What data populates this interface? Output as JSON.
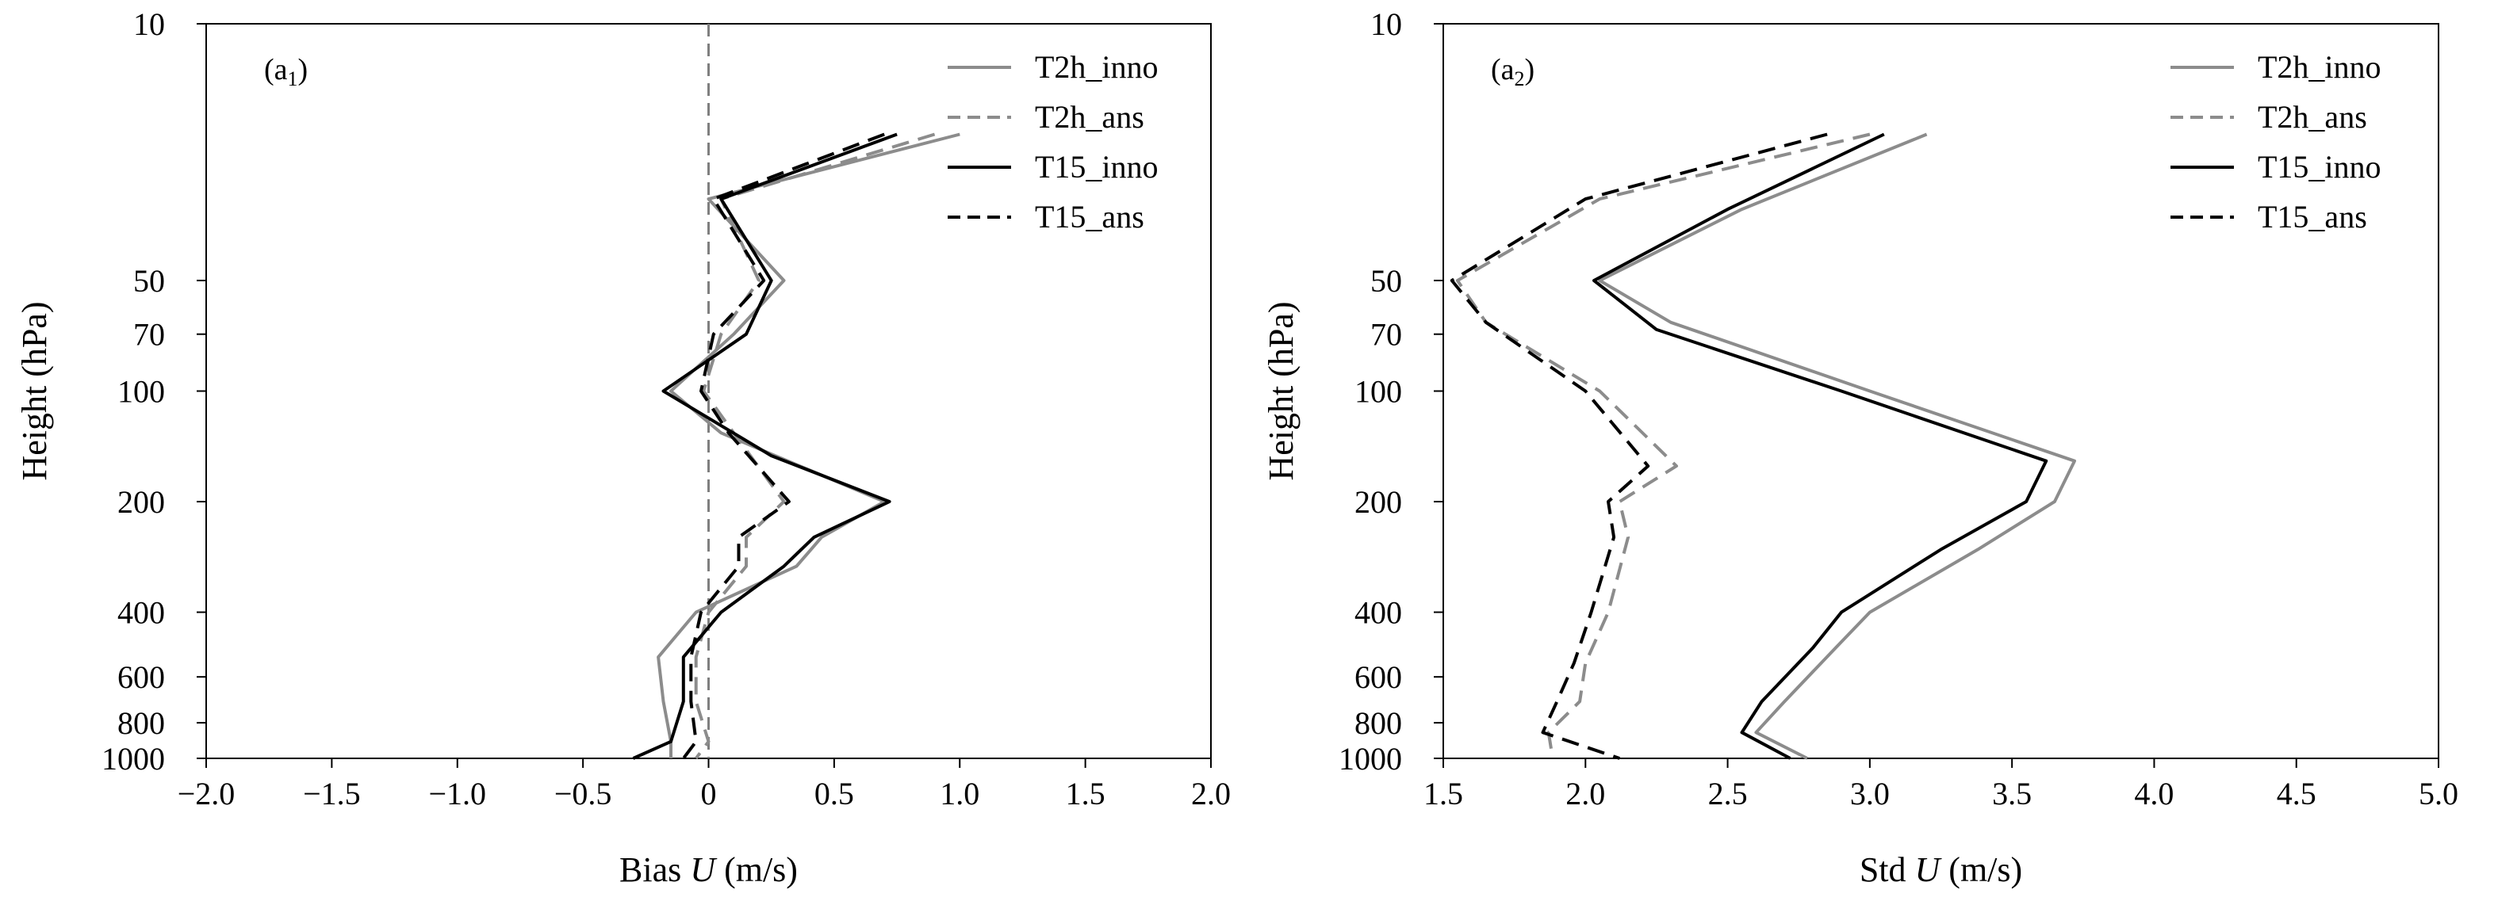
{
  "chart_data": [
    {
      "type": "line",
      "panel_label": "(a",
      "panel_label_sub": "1",
      "panel_label_close": ")",
      "xlabel_prefix": "Bias ",
      "xlabel_var": "U",
      "xlabel_suffix": " (m/s)",
      "ylabel": "Height (hPa)",
      "xlim": [
        -2.0,
        2.0
      ],
      "xticks": [
        -2.0,
        -1.5,
        -1.0,
        -0.5,
        0,
        0.5,
        1.0,
        1.5,
        2.0
      ],
      "xtick_labels": [
        "−2.0",
        "−1.5",
        "−1.0",
        "−0.5",
        "0",
        "0.5",
        "1.0",
        "1.5",
        "2.0"
      ],
      "ylim": [
        1000,
        10
      ],
      "yscale": "log",
      "yticks": [
        10,
        50,
        70,
        100,
        200,
        400,
        600,
        800,
        1000
      ],
      "ytick_labels": [
        "10",
        "50",
        "70",
        "100",
        "200",
        "400",
        "600",
        "800",
        "1000"
      ],
      "reference_line": {
        "x": 0,
        "style": "dashed",
        "color": "#7f7f7f"
      },
      "legend_position": "top-right",
      "series": [
        {
          "name": "T2h_inno",
          "color": "#8c8c8c",
          "dash": "solid",
          "x": [
            1.0,
            0.0,
            0.3,
            0.1,
            -0.15,
            0.05,
            0.7,
            0.45,
            0.35,
            -0.05,
            -0.2,
            -0.18,
            -0.15,
            -0.15
          ],
          "y": [
            20,
            30,
            50,
            70,
            100,
            130,
            200,
            250,
            300,
            400,
            530,
            700,
            900,
            1000
          ]
        },
        {
          "name": "T2h_ans",
          "color": "#8c8c8c",
          "dash": "dashed",
          "x": [
            0.9,
            0.05,
            0.2,
            0.05,
            -0.02,
            0.1,
            0.3,
            0.15,
            0.15,
            0.0,
            -0.05,
            -0.05,
            0.0,
            -0.05
          ],
          "y": [
            20,
            30,
            50,
            70,
            100,
            130,
            200,
            250,
            300,
            400,
            530,
            700,
            900,
            1000
          ]
        },
        {
          "name": "T15_inno",
          "color": "#000000",
          "dash": "solid",
          "x": [
            0.75,
            0.05,
            0.25,
            0.15,
            -0.18,
            0.25,
            0.72,
            0.42,
            0.3,
            0.05,
            -0.1,
            -0.1,
            -0.15,
            -0.3
          ],
          "y": [
            20,
            30,
            50,
            70,
            100,
            150,
            200,
            250,
            300,
            400,
            530,
            700,
            900,
            1000
          ]
        },
        {
          "name": "T15_ans",
          "color": "#000000",
          "dash": "dashed",
          "x": [
            0.7,
            0.02,
            0.22,
            0.02,
            -0.03,
            0.08,
            0.32,
            0.12,
            0.12,
            -0.03,
            -0.07,
            -0.07,
            -0.05,
            -0.1
          ],
          "y": [
            20,
            30,
            50,
            70,
            100,
            130,
            200,
            250,
            300,
            400,
            530,
            700,
            900,
            1000
          ]
        }
      ]
    },
    {
      "type": "line",
      "panel_label": "(a",
      "panel_label_sub": "2",
      "panel_label_close": ")",
      "xlabel_prefix": "Std ",
      "xlabel_var": "U",
      "xlabel_suffix": " (m/s)",
      "ylabel": "Height (hPa)",
      "xlim": [
        1.5,
        5.0
      ],
      "xticks": [
        1.5,
        2.0,
        2.5,
        3.0,
        3.5,
        4.0,
        4.5,
        5.0
      ],
      "xtick_labels": [
        "1.5",
        "2.0",
        "2.5",
        "3.0",
        "3.5",
        "4.0",
        "4.5",
        "5.0"
      ],
      "ylim": [
        1000,
        10
      ],
      "yscale": "log",
      "yticks": [
        10,
        50,
        70,
        100,
        200,
        400,
        600,
        800,
        1000
      ],
      "ytick_labels": [
        "10",
        "50",
        "70",
        "100",
        "200",
        "400",
        "600",
        "800",
        "1000"
      ],
      "legend_position": "top-right",
      "series": [
        {
          "name": "T2h_inno",
          "color": "#8c8c8c",
          "dash": "solid",
          "x": [
            3.2,
            2.55,
            2.05,
            2.3,
            3.0,
            3.72,
            3.65,
            3.38,
            3.0,
            2.88,
            2.7,
            2.6,
            2.78
          ],
          "y": [
            20,
            32,
            50,
            65,
            100,
            155,
            200,
            270,
            400,
            500,
            700,
            850,
            1000
          ]
        },
        {
          "name": "T2h_ans",
          "color": "#8c8c8c",
          "dash": "dashed",
          "x": [
            3.0,
            2.05,
            1.55,
            1.65,
            2.05,
            2.32,
            2.12,
            2.15,
            2.08,
            2.0,
            1.98,
            1.87,
            1.88
          ],
          "y": [
            20,
            30,
            50,
            65,
            100,
            160,
            200,
            250,
            400,
            550,
            700,
            850,
            950
          ]
        },
        {
          "name": "T15_inno",
          "color": "#000000",
          "dash": "solid",
          "x": [
            3.05,
            2.5,
            2.03,
            2.25,
            2.9,
            3.62,
            3.55,
            3.25,
            2.9,
            2.8,
            2.62,
            2.55,
            2.72
          ],
          "y": [
            20,
            32,
            50,
            68,
            100,
            155,
            200,
            270,
            400,
            500,
            700,
            850,
            1000
          ]
        },
        {
          "name": "T15_ans",
          "color": "#000000",
          "dash": "dashed",
          "x": [
            2.85,
            2.0,
            1.53,
            1.65,
            2.0,
            2.22,
            2.08,
            2.1,
            2.02,
            1.96,
            1.9,
            1.85,
            2.12
          ],
          "y": [
            20,
            30,
            50,
            65,
            100,
            160,
            200,
            250,
            400,
            550,
            700,
            850,
            1000
          ]
        }
      ]
    }
  ]
}
